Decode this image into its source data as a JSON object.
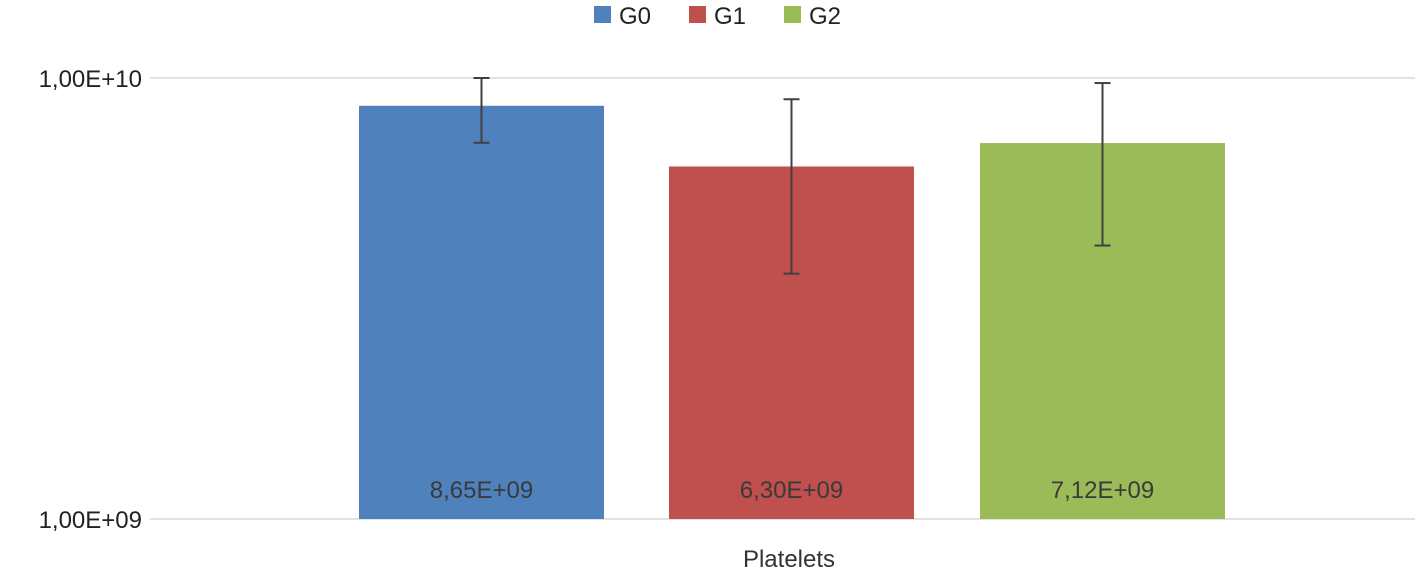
{
  "chart_data": {
    "type": "bar",
    "scale": "log",
    "categories": [
      "Platelets"
    ],
    "series": [
      {
        "name": "G0",
        "value": 8650000000,
        "label": "8,65E+09",
        "error_low": 7130000000,
        "error_high": 10000000000,
        "color": "#4f81bd"
      },
      {
        "name": "G1",
        "value": 6300000000,
        "label": "6,30E+09",
        "error_low": 3600000000,
        "error_high": 8950000000,
        "color": "#c0504d"
      },
      {
        "name": "G2",
        "value": 7120000000,
        "label": "7,12E+09",
        "error_low": 4170000000,
        "error_high": 9740000000,
        "color": "#9bbb59"
      }
    ],
    "ylim": [
      1000000000,
      10000000000
    ],
    "y_ticks": [
      {
        "value": 1000000000,
        "label": "1,00E+09"
      },
      {
        "value": 10000000000,
        "label": "1,00E+10"
      }
    ],
    "grid": true,
    "legend_position": "top",
    "gridline_color": "#d9d9d9",
    "error_bar_color": "#404040"
  }
}
